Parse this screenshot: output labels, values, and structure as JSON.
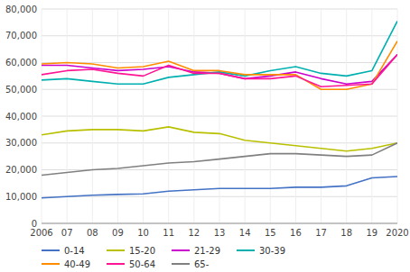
{
  "chart_data": {
    "type": "line",
    "x": [
      2006,
      2007,
      2008,
      2009,
      2010,
      2011,
      2012,
      2013,
      2014,
      2015,
      2016,
      2017,
      2018,
      2019,
      2020
    ],
    "series": [
      {
        "name": "0-14",
        "color": "#4472c4",
        "values": [
          9500,
          10000,
          10500,
          10800,
          11000,
          12000,
          12500,
          13000,
          13000,
          13000,
          13500,
          13500,
          14000,
          17000,
          17500
        ]
      },
      {
        "name": "15-20",
        "color": "#b8c000",
        "values": [
          33000,
          34500,
          35000,
          35000,
          34500,
          36000,
          34000,
          33500,
          31000,
          30000,
          29000,
          28000,
          27000,
          28000,
          30000
        ]
      },
      {
        "name": "21-29",
        "color": "#cc00cc",
        "values": [
          59000,
          59000,
          58000,
          57000,
          57500,
          58500,
          56500,
          56000,
          54000,
          55000,
          56500,
          54000,
          52000,
          53000,
          63000
        ]
      },
      {
        "name": "30-39",
        "color": "#00b0b0",
        "values": [
          53500,
          54000,
          53000,
          52000,
          52000,
          54500,
          55500,
          56500,
          55000,
          57000,
          58500,
          56000,
          55000,
          57000,
          75500
        ]
      },
      {
        "name": "40-49",
        "color": "#ff8c00",
        "values": [
          59500,
          60000,
          59500,
          58000,
          58500,
          60500,
          57000,
          57000,
          55500,
          55500,
          55500,
          50000,
          50000,
          52000,
          68000
        ]
      },
      {
        "name": "50-64",
        "color": "#ff1493",
        "values": [
          55500,
          57000,
          57500,
          56000,
          55000,
          59000,
          56000,
          56000,
          54000,
          54000,
          55000,
          51000,
          51500,
          52000,
          63000
        ]
      },
      {
        "name": "65-",
        "color": "#808080",
        "values": [
          18000,
          19000,
          20000,
          20500,
          21500,
          22500,
          23000,
          24000,
          25000,
          26000,
          26000,
          25500,
          25000,
          25500,
          30000
        ]
      }
    ],
    "xlim": [
      2006,
      2020
    ],
    "xticks": [
      2006,
      {
        "value": 2007,
        "label": "07"
      },
      {
        "value": 2008,
        "label": "08"
      },
      {
        "value": 2009,
        "label": "09"
      },
      {
        "value": 2010,
        "label": "10"
      },
      {
        "value": 2011,
        "label": "11"
      },
      {
        "value": 2012,
        "label": "12"
      },
      {
        "value": 2013,
        "label": "13"
      },
      {
        "value": 2014,
        "label": "14"
      },
      {
        "value": 2015,
        "label": "15"
      },
      {
        "value": 2016,
        "label": "16"
      },
      {
        "value": 2017,
        "label": "17"
      },
      {
        "value": 2018,
        "label": "18"
      },
      {
        "value": 2019,
        "label": "19"
      },
      2020
    ],
    "ylim": [
      0,
      80000
    ],
    "yticks": [
      0,
      {
        "value": 10000,
        "label": "10,000"
      },
      {
        "value": 20000,
        "label": "20,000"
      },
      {
        "value": 30000,
        "label": "30,000"
      },
      {
        "value": 40000,
        "label": "40,000"
      },
      {
        "value": 50000,
        "label": "50,000"
      },
      {
        "value": 60000,
        "label": "60,000"
      },
      {
        "value": 70000,
        "label": "70,000"
      },
      {
        "value": 80000,
        "label": "80,000"
      }
    ],
    "grid": true,
    "legend": "bottom"
  }
}
